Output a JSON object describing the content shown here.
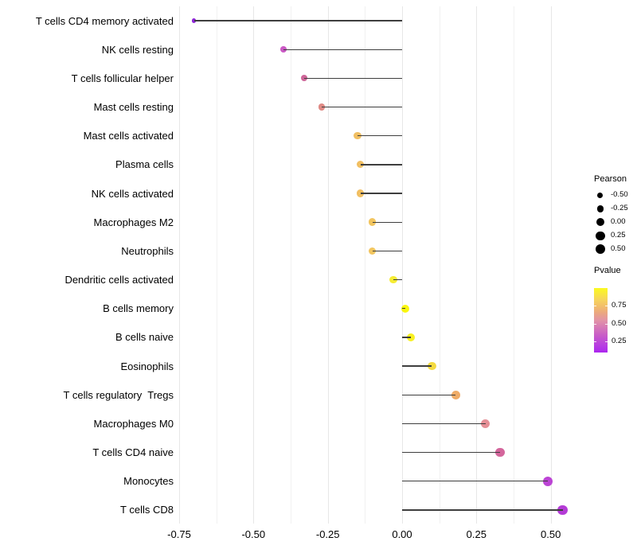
{
  "chart_data": {
    "type": "scatter",
    "subtype": "lollipop",
    "title": "",
    "xlabel": "",
    "ylabel": "",
    "xlim": [
      -0.77,
      0.57
    ],
    "grid": "vertical-only",
    "x_ticks": [
      "-0.75",
      "-0.50",
      "-0.25",
      "0.00",
      "0.25",
      "0.50"
    ],
    "x_tick_values": [
      -0.75,
      -0.5,
      -0.25,
      0,
      0.25,
      0.5
    ],
    "x_minor_step": 0.125,
    "points": [
      {
        "label": "T cells CD4 memory activated",
        "pearson": -0.7,
        "pvalue": 0.05,
        "color": "#8f27d8"
      },
      {
        "label": "NK cells resting",
        "pearson": -0.4,
        "pvalue": 0.27,
        "color": "#cb5ac5"
      },
      {
        "label": "T cells follicular helper",
        "pearson": -0.33,
        "pvalue": 0.38,
        "color": "#ce6699"
      },
      {
        "label": "Mast cells resting",
        "pearson": -0.27,
        "pvalue": 0.52,
        "color": "#df8a85"
      },
      {
        "label": "Mast cells activated",
        "pearson": -0.15,
        "pvalue": 0.76,
        "color": "#f1bf62"
      },
      {
        "label": "Plasma cells",
        "pearson": -0.14,
        "pvalue": 0.76,
        "color": "#f1bf62"
      },
      {
        "label": "NK cells activated",
        "pearson": -0.14,
        "pvalue": 0.76,
        "color": "#f1bf62"
      },
      {
        "label": "Macrophages M2",
        "pearson": -0.1,
        "pvalue": 0.79,
        "color": "#f2c55f"
      },
      {
        "label": "Neutrophils",
        "pearson": -0.1,
        "pvalue": 0.79,
        "color": "#f2c55f"
      },
      {
        "label": "Dendritic cells activated",
        "pearson": -0.03,
        "pvalue": 0.93,
        "color": "#f6ec33"
      },
      {
        "label": "B cells memory",
        "pearson": 0.01,
        "pvalue": 0.99,
        "color": "#faf70d"
      },
      {
        "label": "B cells naive",
        "pearson": 0.03,
        "pvalue": 0.96,
        "color": "#f8f022"
      },
      {
        "label": "Eosinophils",
        "pearson": 0.1,
        "pvalue": 0.86,
        "color": "#f4da40"
      },
      {
        "label": "T cells regulatory  Tregs",
        "pearson": 0.18,
        "pvalue": 0.67,
        "color": "#efac68"
      },
      {
        "label": "Macrophages M0",
        "pearson": 0.28,
        "pvalue": 0.55,
        "color": "#e58f96"
      },
      {
        "label": "T cells CD4 naive",
        "pearson": 0.33,
        "pvalue": 0.38,
        "color": "#d4669c"
      },
      {
        "label": "Monocytes",
        "pearson": 0.49,
        "pvalue": 0.16,
        "color": "#bb44d4"
      },
      {
        "label": "T cells CD8",
        "pearson": 0.54,
        "pvalue": 0.13,
        "color": "#b43bd6"
      }
    ],
    "legend": {
      "size": {
        "title": "Pearson",
        "entries": [
          {
            "label": "-0.50",
            "value": -0.5
          },
          {
            "label": "-0.25",
            "value": -0.25
          },
          {
            "label": "0.00",
            "value": 0.0
          },
          {
            "label": "0.25",
            "value": 0.25
          },
          {
            "label": "0.50",
            "value": 0.5
          }
        ],
        "dot_color": "#000000"
      },
      "color": {
        "title": "Pvalue",
        "ticks": [
          "0.75",
          "0.50",
          "0.25"
        ],
        "gradient_low": "#a020f0",
        "gradient_high": "#ffff00",
        "legend_position": "right"
      }
    },
    "colors": {
      "stem": "#3e3e3e",
      "grid_major": "#e7e7e7",
      "grid_minor": "#f1f1f1",
      "background": "#ffffff",
      "text": "#000000"
    }
  }
}
